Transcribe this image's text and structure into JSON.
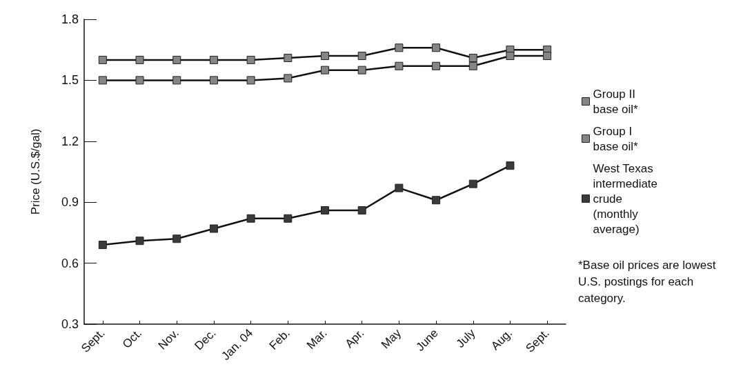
{
  "chart_data": {
    "type": "line",
    "ylabel": "Price (U.S.$/gal)",
    "categories": [
      "Sept.",
      "Oct.",
      "Nov.",
      "Dec.",
      "Jan. 04",
      "Feb.",
      "Mar.",
      "Apr.",
      "May",
      "June",
      "July",
      "Aug.",
      "Sept."
    ],
    "series": [
      {
        "name": "Group II base oil*",
        "color": "#858585",
        "values": [
          1.6,
          1.6,
          1.6,
          1.6,
          1.6,
          1.61,
          1.62,
          1.62,
          1.66,
          1.66,
          1.61,
          1.65,
          1.65
        ]
      },
      {
        "name": "Group I base oil*",
        "color": "#858585",
        "values": [
          1.5,
          1.5,
          1.5,
          1.5,
          1.5,
          1.51,
          1.55,
          1.55,
          1.57,
          1.57,
          1.57,
          1.62,
          1.62
        ]
      },
      {
        "name": "West Texas intermediate crude (monthly average)",
        "color": "#3a3a3a",
        "values": [
          0.69,
          0.71,
          0.72,
          0.77,
          0.82,
          0.82,
          0.86,
          0.86,
          0.97,
          0.91,
          0.99,
          1.08,
          null
        ]
      }
    ],
    "ylim": [
      0.3,
      1.8
    ],
    "yticks": [
      0.3,
      0.6,
      0.9,
      1.2,
      1.5,
      1.8
    ],
    "grid": false,
    "legend": "right",
    "marker": "square",
    "line_style": "solid",
    "annotations": [
      "*Base oil prices are lowest U.S. postings for each category."
    ]
  }
}
